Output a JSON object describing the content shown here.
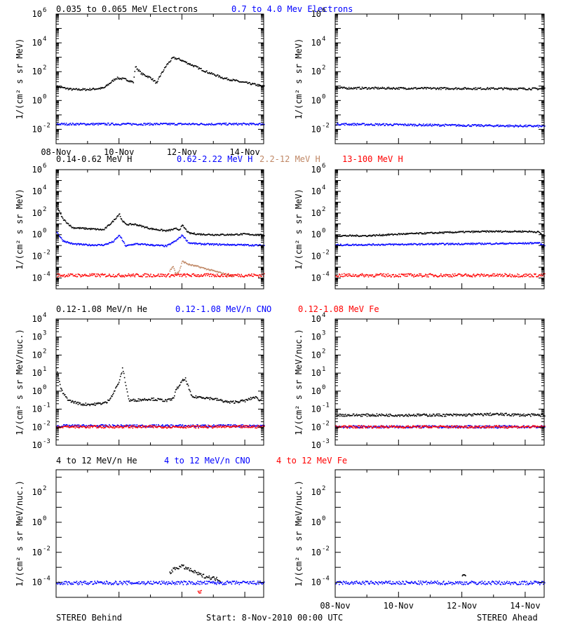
{
  "colors": {
    "black": "#000000",
    "blue": "#0000ff",
    "tan": "#c08866",
    "red": "#ff0000"
  },
  "panel_titles": [
    [
      {
        "text": "0.035 to 0.065 MeV Electrons",
        "color": "black"
      },
      {
        "text": "0.7 to 4.0 Mev Electrons",
        "color": "blue"
      }
    ],
    [
      {
        "text": "0.14-0.62 MeV H",
        "color": "black"
      },
      {
        "text": "0.62-2.22 MeV H",
        "color": "blue"
      },
      {
        "text": "2.2-12 MeV H",
        "color": "tan"
      },
      {
        "text": "13-100 MeV H",
        "color": "red"
      }
    ],
    [
      {
        "text": "0.12-1.08 MeV/n He",
        "color": "black"
      },
      {
        "text": "0.12-1.08 MeV/n CNO",
        "color": "blue"
      },
      {
        "text": "0.12-1.08 MeV Fe",
        "color": "red"
      }
    ],
    [
      {
        "text": "4 to 12 MeV/n He",
        "color": "black"
      },
      {
        "text": "4 to 12 MeV/n CNO",
        "color": "blue"
      },
      {
        "text": "4 to 12 MeV Fe",
        "color": "red"
      }
    ]
  ],
  "ylabels": [
    "1/(cm² s sr MeV)",
    "1/(cm² s sr MeV)",
    "1/(cm² s sr MeV/nuc.)",
    "1/(cm² s sr MeV/nuc.)"
  ],
  "footer": {
    "left": "STEREO Behind",
    "center": "Start:  8-Nov-2010 00:00 UTC",
    "right": "STEREO Ahead"
  },
  "chart_data": [
    {
      "type": "scatter",
      "panel": "electrons",
      "spacecraft": "STEREO Behind",
      "y_scale": "log",
      "ylim_exp": [
        -3,
        6
      ],
      "ytick_exponents": [
        -2,
        0,
        2,
        4,
        6
      ],
      "xlim_days": [
        8,
        14.6
      ],
      "xticks": [
        "08-Nov",
        "10-Nov",
        "12-Nov",
        "14-Nov"
      ],
      "series": [
        {
          "name": "0.035 to 0.065 MeV Electrons",
          "color": "black",
          "x": [
            8.0,
            8.5,
            9.0,
            9.5,
            9.9,
            10.2,
            10.45,
            10.5,
            10.7,
            11.0,
            11.1,
            11.2,
            11.25,
            11.5,
            11.7,
            11.9,
            12.3,
            12.8,
            13.3,
            13.8,
            14.3,
            14.6
          ],
          "log10y": [
            1.0,
            0.8,
            0.8,
            0.9,
            1.6,
            1.5,
            1.3,
            2.4,
            1.9,
            1.6,
            1.4,
            1.2,
            1.6,
            2.5,
            3.0,
            2.9,
            2.5,
            2.0,
            1.6,
            1.35,
            1.15,
            1.0
          ]
        },
        {
          "name": "0.7 to 4.0 Mev Electrons",
          "color": "blue",
          "x": [
            8.0,
            14.6
          ],
          "log10y": [
            -1.6,
            -1.6
          ]
        }
      ]
    },
    {
      "type": "scatter",
      "panel": "electrons",
      "spacecraft": "STEREO Ahead",
      "y_scale": "log",
      "ylim_exp": [
        -3,
        6
      ],
      "ytick_exponents": [
        -2,
        0,
        2,
        4,
        6
      ],
      "xlim_days": [
        8,
        14.6
      ],
      "series": [
        {
          "name": "0.035 to 0.065 MeV Electrons",
          "color": "black",
          "x": [
            8.0,
            14.6
          ],
          "log10y": [
            0.9,
            0.85
          ]
        },
        {
          "name": "0.7 to 4.0 Mev Electrons",
          "color": "blue",
          "x": [
            8.0,
            14.6
          ],
          "log10y": [
            -1.6,
            -1.75
          ]
        }
      ]
    },
    {
      "type": "scatter",
      "panel": "protons",
      "spacecraft": "STEREO Behind",
      "y_scale": "log",
      "ylim_exp": [
        -5,
        6
      ],
      "ytick_exponents": [
        -4,
        -2,
        0,
        2,
        4,
        6
      ],
      "xlim_days": [
        8,
        14.6
      ],
      "series": [
        {
          "name": "0.14-0.62 MeV H",
          "color": "black",
          "x": [
            8.0,
            8.2,
            8.5,
            9.0,
            9.5,
            9.8,
            10.0,
            10.05,
            10.2,
            10.5,
            11.0,
            11.5,
            11.8,
            11.9,
            12.0,
            12.2,
            12.5,
            13.0,
            13.5,
            14.0,
            14.6
          ],
          "log10y": [
            2.7,
            1.5,
            0.7,
            0.6,
            0.5,
            1.3,
            2.0,
            1.5,
            1.0,
            1.0,
            0.6,
            0.4,
            0.6,
            0.5,
            0.9,
            0.2,
            0.1,
            0.05,
            0.05,
            0.1,
            0.0
          ]
        },
        {
          "name": "0.62-2.22 MeV H",
          "color": "blue",
          "x": [
            8.0,
            8.2,
            8.5,
            9.0,
            9.5,
            9.8,
            10.0,
            10.2,
            10.5,
            11.0,
            11.5,
            11.8,
            12.0,
            12.2,
            12.5,
            13.0,
            14.0,
            14.6
          ],
          "log10y": [
            0.3,
            -0.5,
            -0.8,
            -0.9,
            -0.9,
            -0.6,
            0.0,
            -1.0,
            -0.8,
            -0.9,
            -1.0,
            -0.5,
            0.0,
            -0.7,
            -0.8,
            -0.85,
            -0.9,
            -0.95
          ]
        },
        {
          "name": "2.2-12 MeV H",
          "color": "tan",
          "x": [
            11.6,
            11.7,
            11.8,
            11.9,
            12.0,
            12.2,
            12.5,
            13.0,
            13.5,
            13.6
          ],
          "log10y": [
            -3.3,
            -2.8,
            -3.6,
            -3.3,
            -2.4,
            -2.7,
            -2.9,
            -3.3,
            -3.7,
            -3.8
          ]
        },
        {
          "name": "13-100 MeV H",
          "color": "red",
          "x": [
            8.0,
            14.6
          ],
          "log10y": [
            -3.7,
            -3.7
          ]
        }
      ]
    },
    {
      "type": "scatter",
      "panel": "protons",
      "spacecraft": "STEREO Ahead",
      "y_scale": "log",
      "ylim_exp": [
        -5,
        6
      ],
      "ytick_exponents": [
        -4,
        -2,
        0,
        2,
        4,
        6
      ],
      "xlim_days": [
        8,
        14.6
      ],
      "series": [
        {
          "name": "0.14-0.62 MeV H",
          "color": "black",
          "x": [
            8.0,
            9.0,
            10.0,
            11.0,
            12.0,
            13.0,
            14.0,
            14.4,
            14.6
          ],
          "log10y": [
            -0.05,
            -0.05,
            0.1,
            0.2,
            0.3,
            0.35,
            0.35,
            0.3,
            -0.1
          ]
        },
        {
          "name": "0.62-2.22 MeV H",
          "color": "blue",
          "x": [
            8.0,
            10.0,
            12.0,
            14.0,
            14.4,
            14.6
          ],
          "log10y": [
            -0.9,
            -0.85,
            -0.8,
            -0.75,
            -0.7,
            -1.0
          ]
        },
        {
          "name": "13-100 MeV H",
          "color": "red",
          "x": [
            8.0,
            14.6
          ],
          "log10y": [
            -3.7,
            -3.7
          ]
        }
      ]
    },
    {
      "type": "scatter",
      "panel": "heavy ions low",
      "spacecraft": "STEREO Behind",
      "y_scale": "log",
      "ylim_exp": [
        -3,
        4
      ],
      "ytick_exponents": [
        -3,
        -2,
        -1,
        0,
        1,
        2,
        3,
        4
      ],
      "xlim_days": [
        8,
        14.6
      ],
      "series": [
        {
          "name": "0.12-1.08 MeV/n He",
          "color": "black",
          "x": [
            8.0,
            8.1,
            8.2,
            8.4,
            8.8,
            9.2,
            9.6,
            9.8,
            10.0,
            10.1,
            10.3,
            11.0,
            11.5,
            11.7,
            11.8,
            12.0,
            12.1,
            12.3,
            12.6,
            13.0,
            13.5,
            14.0,
            14.3,
            14.5
          ],
          "log10y": [
            1.3,
            0.4,
            -0.1,
            -0.5,
            -0.7,
            -0.7,
            -0.6,
            -0.1,
            0.6,
            1.3,
            -0.5,
            -0.4,
            -0.5,
            -0.4,
            0.1,
            0.6,
            0.7,
            -0.3,
            -0.3,
            -0.4,
            -0.6,
            -0.5,
            -0.3,
            -0.5
          ]
        },
        {
          "name": "0.12-1.08 MeV/n CNO",
          "color": "blue",
          "x": [
            8.0,
            14.6
          ],
          "log10y": [
            -1.9,
            -1.9
          ]
        },
        {
          "name": "0.12-1.08 MeV Fe",
          "color": "red",
          "x": [
            8.0,
            14.6
          ],
          "log10y": [
            -1.95,
            -1.95
          ]
        }
      ]
    },
    {
      "type": "scatter",
      "panel": "heavy ions low",
      "spacecraft": "STEREO Ahead",
      "y_scale": "log",
      "ylim_exp": [
        -3,
        4
      ],
      "ytick_exponents": [
        -3,
        -2,
        -1,
        0,
        1,
        2,
        3,
        4
      ],
      "xlim_days": [
        8,
        14.6
      ],
      "series": [
        {
          "name": "0.12-1.08 MeV/n He",
          "color": "black",
          "x": [
            8.0,
            10.0,
            12.0,
            13.0,
            14.0,
            14.6
          ],
          "log10y": [
            -1.3,
            -1.3,
            -1.3,
            -1.25,
            -1.3,
            -1.3
          ]
        },
        {
          "name": "0.12-1.08 MeV/n CNO",
          "color": "blue",
          "x": [
            8.0,
            14.6
          ],
          "log10y": [
            -1.95,
            -1.95
          ]
        },
        {
          "name": "0.12-1.08 MeV Fe",
          "color": "red",
          "x": [
            8.0,
            14.6
          ],
          "log10y": [
            -1.95,
            -1.95
          ]
        }
      ]
    },
    {
      "type": "scatter",
      "panel": "heavy ions high",
      "spacecraft": "STEREO Behind",
      "y_scale": "log",
      "ylim_exp": [
        -5,
        3.5
      ],
      "ytick_exponents": [
        -4,
        -2,
        0,
        2
      ],
      "xlim_days": [
        8,
        14.6
      ],
      "series": [
        {
          "name": "4 to 12 MeV/n He",
          "color": "black",
          "x": [
            11.6,
            11.8,
            12.0,
            12.2,
            12.4,
            12.6,
            12.8,
            13.0,
            13.2
          ],
          "log10y": [
            -3.3,
            -3.0,
            -2.9,
            -3.1,
            -3.3,
            -3.5,
            -3.6,
            -3.7,
            -3.8
          ]
        },
        {
          "name": "4 to 12 MeV/n CNO",
          "color": "blue",
          "x": [
            8.0,
            14.6
          ],
          "log10y": [
            -4.0,
            -4.0
          ]
        },
        {
          "name": "4 to 12 MeV Fe",
          "color": "red",
          "x": [
            12.5,
            12.6
          ],
          "log10y": [
            -4.6,
            -4.6
          ]
        }
      ]
    },
    {
      "type": "scatter",
      "panel": "heavy ions high",
      "spacecraft": "STEREO Ahead",
      "y_scale": "log",
      "ylim_exp": [
        -5,
        3.5
      ],
      "ytick_exponents": [
        -4,
        -2,
        0,
        2
      ],
      "xlim_days": [
        8,
        14.6
      ],
      "xticks": [
        "08-Nov",
        "10-Nov",
        "12-Nov",
        "14-Nov"
      ],
      "series": [
        {
          "name": "4 to 12 MeV/n He",
          "color": "black",
          "x": [
            12.0,
            12.1
          ],
          "log10y": [
            -3.6,
            -3.5
          ]
        },
        {
          "name": "4 to 12 MeV/n CNO",
          "color": "blue",
          "x": [
            8.0,
            14.6
          ],
          "log10y": [
            -4.0,
            -4.0
          ]
        }
      ]
    }
  ]
}
